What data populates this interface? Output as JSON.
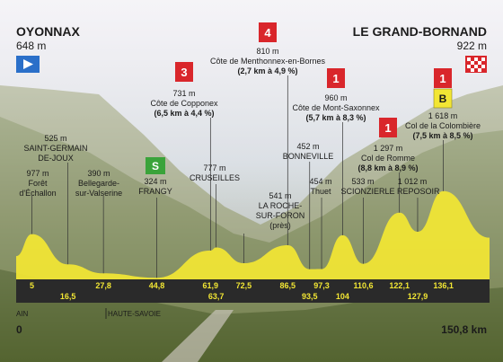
{
  "start": {
    "name": "OYONNAX",
    "altitude": "648 m"
  },
  "finish": {
    "name": "LE GRAND-BORNAND",
    "altitude": "922 m",
    "distance": "150,8 km"
  },
  "start_km": "0",
  "regions": [
    {
      "label": "AIN"
    },
    {
      "label": "HAUTE-SAVOIE"
    }
  ],
  "climbs": [
    {
      "category": "4",
      "altitude": "810 m",
      "name": "Côte de Menthonnex-en-Bornes",
      "detail": "(2,7 km à 4,9 %)"
    },
    {
      "category": "3",
      "altitude": "731 m",
      "name": "Côte de Copponex",
      "detail": "(6,5 km à 4,4 %)"
    },
    {
      "category": "1",
      "altitude": "960 m",
      "name": "Côte de Mont-Saxonnex",
      "detail": "(5,7 km à 8,3 %)"
    },
    {
      "category": "1",
      "altitude": "1 297 m",
      "name": "Col de Romme",
      "detail": "(8,8 km à 8,9 %)"
    },
    {
      "category": "1",
      "altitude": "1 618 m",
      "name": "Col de la Colombière",
      "detail": "(7,5 km à 8,5 %)",
      "bonus": "B"
    }
  ],
  "towns": [
    {
      "altitude": "977 m",
      "name": "Forêt d'Échallon"
    },
    {
      "altitude": "525 m",
      "name": "SAINT-GERMAIN DE-JOUX"
    },
    {
      "altitude": "390 m",
      "name": "Bellegarde-sur-Valserine"
    },
    {
      "altitude": "324 m",
      "name": "FRANGY",
      "sprint": "S"
    },
    {
      "altitude": "777 m",
      "name": "CRUSEILLES"
    },
    {
      "altitude": "541 m",
      "name": "LA ROCHE-SUR-FORON",
      "note": "(près)"
    },
    {
      "altitude": "452 m",
      "name": "BONNEVILLE"
    },
    {
      "altitude": "454 m",
      "name": "Thuet"
    },
    {
      "altitude": "533 m",
      "name": "SCIONZIER"
    },
    {
      "altitude": "1 012 m",
      "name": "LE REPOSOIR"
    }
  ],
  "chart_data": {
    "type": "area",
    "xlabel": "",
    "ylabel": "",
    "x_unit": "km",
    "y_unit": "m",
    "xlim": [
      0,
      150.8
    ],
    "km_markers_top": [
      "5",
      "27,8",
      "44,8",
      "61,9",
      "72,5",
      "86,5",
      "97,3",
      "110,6",
      "122,1",
      "136,1"
    ],
    "km_markers_bottom": [
      "16,5",
      "63,7",
      "93,5",
      "104",
      "127,9"
    ],
    "x": [
      0,
      5,
      16.5,
      27.8,
      44.8,
      61.9,
      63.7,
      72.5,
      86.5,
      93.5,
      97.3,
      104,
      110.6,
      122.1,
      127.9,
      136.1,
      150.8
    ],
    "y": [
      648,
      977,
      525,
      390,
      324,
      731,
      777,
      541,
      810,
      452,
      454,
      960,
      533,
      1297,
      1012,
      1618,
      922
    ],
    "colors": {
      "fill": "#f2e634",
      "band": "#2a2a2a",
      "cat4": "#d9262b",
      "cat1": "#d9262b",
      "sprint": "#3aa33a",
      "bonus": "#f2e634"
    }
  }
}
